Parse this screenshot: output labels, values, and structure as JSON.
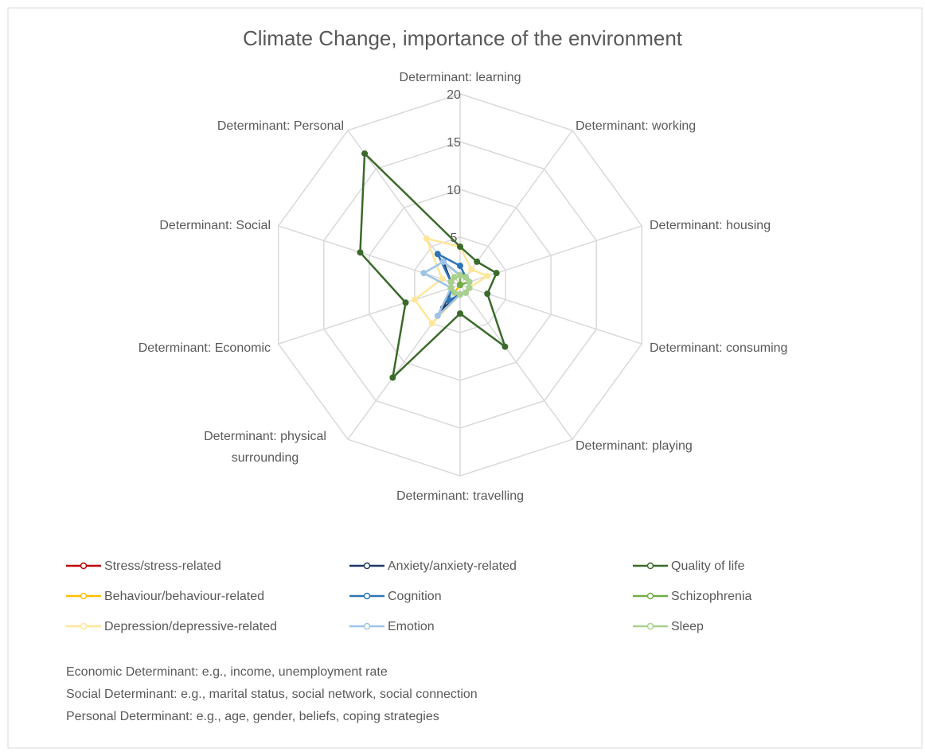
{
  "chart_data": {
    "type": "radar",
    "title": "Climate Change, importance of the environment",
    "categories": [
      "Determinant: learning",
      "Determinant: working",
      "Determinant: housing",
      "Determinant: consuming",
      "Determinant: playing",
      "Determinant: travelling",
      "Determinant: physical surrounding",
      "Determinant: Economic",
      "Determinant: Social",
      "Determinant: Personal"
    ],
    "ylim": [
      0,
      20
    ],
    "yticks": [
      5,
      10,
      15,
      20
    ],
    "grid": true,
    "series": [
      {
        "name": "Stress/stress-related",
        "color": "#c00000",
        "values": [
          0,
          0,
          0,
          0,
          0,
          0,
          0,
          0,
          0,
          0
        ]
      },
      {
        "name": "Anxiety/anxiety-related",
        "color": "#1f3864",
        "values": [
          1,
          1,
          1,
          1,
          1,
          1,
          3,
          1,
          1,
          3
        ]
      },
      {
        "name": "Quality of life",
        "color": "#3b6a2a",
        "values": [
          4,
          3,
          4,
          3,
          8,
          3,
          12,
          6,
          11,
          17
        ]
      },
      {
        "name": "Behaviour/behaviour-related",
        "color": "#ffc000",
        "values": [
          1,
          0,
          0,
          0,
          0,
          0,
          1,
          1,
          1,
          1
        ]
      },
      {
        "name": "Cognition",
        "color": "#2e75b6",
        "values": [
          2,
          1,
          1,
          1,
          1,
          1,
          2,
          1,
          1,
          4
        ]
      },
      {
        "name": "Schizophrenia",
        "color": "#70ad47",
        "values": [
          1,
          0,
          1,
          0,
          0,
          0,
          0,
          0,
          0,
          0
        ]
      },
      {
        "name": "Depression/depressive-related",
        "color": "#ffe699",
        "values": [
          4,
          2,
          3,
          1,
          1,
          1,
          5,
          5,
          2,
          6
        ]
      },
      {
        "name": "Emotion",
        "color": "#9dc3e6",
        "values": [
          1,
          1,
          1,
          1,
          1,
          1,
          4,
          1,
          4,
          3
        ]
      },
      {
        "name": "Sleep",
        "color": "#a9d18e",
        "values": [
          1,
          1,
          1,
          1,
          1,
          1,
          1,
          1,
          1,
          1
        ]
      }
    ],
    "notes": [
      "Economic Determinant: e.g., income, unemployment rate",
      "Social Determinant: e.g., marital status, social network, social connection",
      "Personal Determinant: e.g., age, gender, beliefs, coping strategies"
    ]
  }
}
